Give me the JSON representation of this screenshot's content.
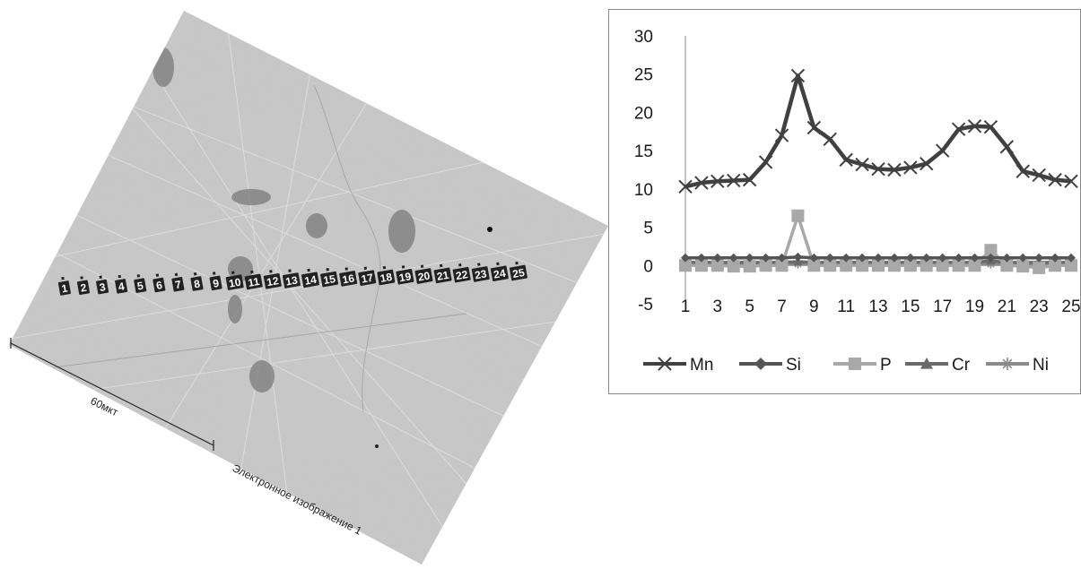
{
  "image": {
    "scale_bar_label": "60мкт",
    "caption": "Электронное изображение 1",
    "spectrum_labels": [
      "1",
      "2",
      "3",
      "4",
      "5",
      "6",
      "7",
      "8",
      "9",
      "10",
      "11",
      "12",
      "13",
      "14",
      "15",
      "16",
      "17",
      "18",
      "19",
      "20",
      "21",
      "22",
      "23",
      "24",
      "25"
    ]
  },
  "chart_data": {
    "type": "line",
    "title": "",
    "xlabel": "",
    "ylabel": "",
    "x": [
      1,
      2,
      3,
      4,
      5,
      6,
      7,
      8,
      9,
      10,
      11,
      12,
      13,
      14,
      15,
      16,
      17,
      18,
      19,
      20,
      21,
      22,
      23,
      24,
      25
    ],
    "x_tick_labels": [
      "1",
      "3",
      "5",
      "7",
      "9",
      "11",
      "13",
      "15",
      "17",
      "19",
      "21",
      "23",
      "25"
    ],
    "ylim": [
      -5,
      30
    ],
    "y_tick_labels": [
      "-5",
      "0",
      "5",
      "10",
      "15",
      "20",
      "25",
      "30"
    ],
    "grid": false,
    "legend_position": "bottom",
    "series": [
      {
        "name": "Mn",
        "color": "#404040",
        "marker": "x",
        "values": [
          10.3,
          10.8,
          11.0,
          11.1,
          11.2,
          13.5,
          17.0,
          24.8,
          18.0,
          16.5,
          13.8,
          13.2,
          12.6,
          12.5,
          12.8,
          13.3,
          15.0,
          17.8,
          18.2,
          18.1,
          15.5,
          12.3,
          11.8,
          11.2,
          11.0
        ]
      },
      {
        "name": "Si",
        "color": "#555555",
        "marker": "diamond",
        "values": [
          1.0,
          1.0,
          1.0,
          1.0,
          1.0,
          1.0,
          1.0,
          1.1,
          1.0,
          1.0,
          1.0,
          1.0,
          1.0,
          1.0,
          1.0,
          1.0,
          1.0,
          1.0,
          1.0,
          1.0,
          1.0,
          1.0,
          1.0,
          1.0,
          1.0
        ]
      },
      {
        "name": "P",
        "color": "#a8a8a8",
        "marker": "square",
        "values": [
          0.0,
          0.0,
          0.0,
          -0.1,
          -0.1,
          0.0,
          0.0,
          6.5,
          0.0,
          0.0,
          0.0,
          0.0,
          0.0,
          0.0,
          0.0,
          0.0,
          0.0,
          0.0,
          0.0,
          2.0,
          0.0,
          -0.1,
          -0.3,
          0.0,
          0.0
        ]
      },
      {
        "name": "Cr",
        "color": "#6a6a6a",
        "marker": "triangle",
        "values": [
          0.4,
          0.4,
          0.4,
          0.4,
          0.4,
          0.4,
          0.4,
          0.5,
          0.4,
          0.4,
          0.4,
          0.4,
          0.4,
          0.4,
          0.4,
          0.4,
          0.4,
          0.4,
          0.4,
          0.6,
          0.4,
          0.4,
          0.4,
          0.4,
          0.4
        ]
      },
      {
        "name": "Ni",
        "color": "#8a8a8a",
        "marker": "asterisk",
        "values": [
          0.2,
          0.2,
          0.2,
          0.2,
          0.2,
          0.2,
          0.2,
          0.2,
          0.2,
          0.2,
          0.2,
          0.2,
          0.2,
          0.2,
          0.2,
          0.2,
          0.2,
          0.2,
          0.2,
          0.2,
          0.2,
          0.2,
          0.2,
          0.2,
          0.2
        ]
      }
    ]
  }
}
